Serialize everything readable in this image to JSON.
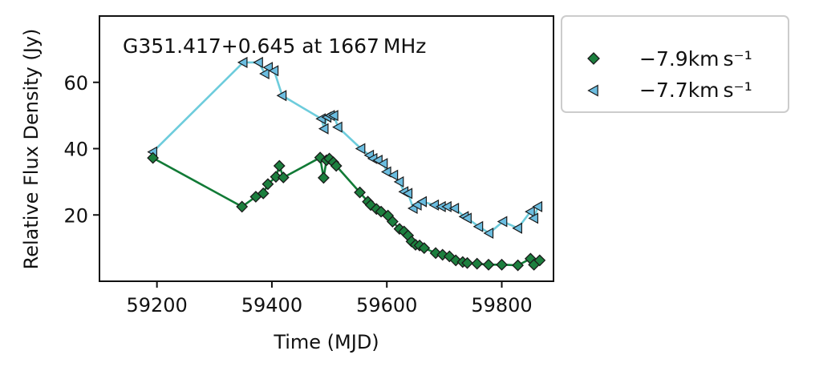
{
  "chart_data": {
    "type": "line",
    "title": "G351.417+0.645 at 1667 MHz",
    "xlabel": "Time (MJD)",
    "ylabel": "Relative Flux Density (Jy)",
    "xlim": [
      59100,
      59890
    ],
    "ylim": [
      0,
      80
    ],
    "xticks": [
      59200,
      59400,
      59600,
      59800
    ],
    "yticks": [
      20,
      40,
      60
    ],
    "grid": false,
    "legend_position": "outside-right",
    "series": [
      {
        "name": "−7.9km s⁻¹",
        "marker": "diamond",
        "line_color": "#117a36",
        "marker_color": "#1c7f3e",
        "points": [
          [
            59193,
            37.2
          ],
          [
            59348,
            22.5
          ],
          [
            59372,
            25.5
          ],
          [
            59385,
            26.5
          ],
          [
            59393,
            29.3
          ],
          [
            59407,
            31.5
          ],
          [
            59413,
            34.8
          ],
          [
            59420,
            31.3
          ],
          [
            59484,
            37.3
          ],
          [
            59490,
            31.2
          ],
          [
            59495,
            36.5
          ],
          [
            59500,
            37.0
          ],
          [
            59507,
            35.9
          ],
          [
            59512,
            34.8
          ],
          [
            59553,
            26.8
          ],
          [
            59567,
            24.0
          ],
          [
            59572,
            23.0
          ],
          [
            59582,
            21.8
          ],
          [
            59590,
            21.0
          ],
          [
            59602,
            19.8
          ],
          [
            59610,
            18.0
          ],
          [
            59622,
            15.8
          ],
          [
            59630,
            15.0
          ],
          [
            59637,
            13.8
          ],
          [
            59643,
            12.0
          ],
          [
            59650,
            11.0
          ],
          [
            59657,
            10.8
          ],
          [
            59665,
            10.0
          ],
          [
            59685,
            8.5
          ],
          [
            59697,
            8.0
          ],
          [
            59709,
            7.5
          ],
          [
            59720,
            6.3
          ],
          [
            59732,
            5.8
          ],
          [
            59740,
            5.5
          ],
          [
            59757,
            5.3
          ],
          [
            59777,
            5.0
          ],
          [
            59800,
            5.0
          ],
          [
            59828,
            4.8
          ],
          [
            59850,
            6.8
          ],
          [
            59856,
            5.0
          ],
          [
            59866,
            6.3
          ]
        ]
      },
      {
        "name": "−7.7km s⁻¹",
        "marker": "triangle-left",
        "line_color": "#6dccdc",
        "marker_color": "#6bbde0",
        "points": [
          [
            59193,
            39.0
          ],
          [
            59350,
            66.0
          ],
          [
            59377,
            66.0
          ],
          [
            59388,
            62.6
          ],
          [
            59394,
            64.5
          ],
          [
            59404,
            63.5
          ],
          [
            59418,
            56.0
          ],
          [
            59486,
            49.0
          ],
          [
            59491,
            46.0
          ],
          [
            59496,
            49.5
          ],
          [
            59502,
            50.0
          ],
          [
            59508,
            50.0
          ],
          [
            59515,
            46.5
          ],
          [
            59555,
            40.0
          ],
          [
            59570,
            38.0
          ],
          [
            59576,
            37.0
          ],
          [
            59585,
            36.5
          ],
          [
            59594,
            35.5
          ],
          [
            59600,
            33.0
          ],
          [
            59612,
            32.0
          ],
          [
            59622,
            30.0
          ],
          [
            59630,
            27.0
          ],
          [
            59637,
            26.5
          ],
          [
            59646,
            22.0
          ],
          [
            59653,
            23.0
          ],
          [
            59662,
            24.0
          ],
          [
            59683,
            23.0
          ],
          [
            59695,
            22.5
          ],
          [
            59705,
            22.5
          ],
          [
            59718,
            22.0
          ],
          [
            59735,
            19.5
          ],
          [
            59740,
            19.0
          ],
          [
            59760,
            16.5
          ],
          [
            59778,
            14.5
          ],
          [
            59802,
            18.0
          ],
          [
            59828,
            16.0
          ],
          [
            59850,
            21.0
          ],
          [
            59856,
            19.0
          ],
          [
            59863,
            22.5
          ]
        ]
      }
    ]
  }
}
